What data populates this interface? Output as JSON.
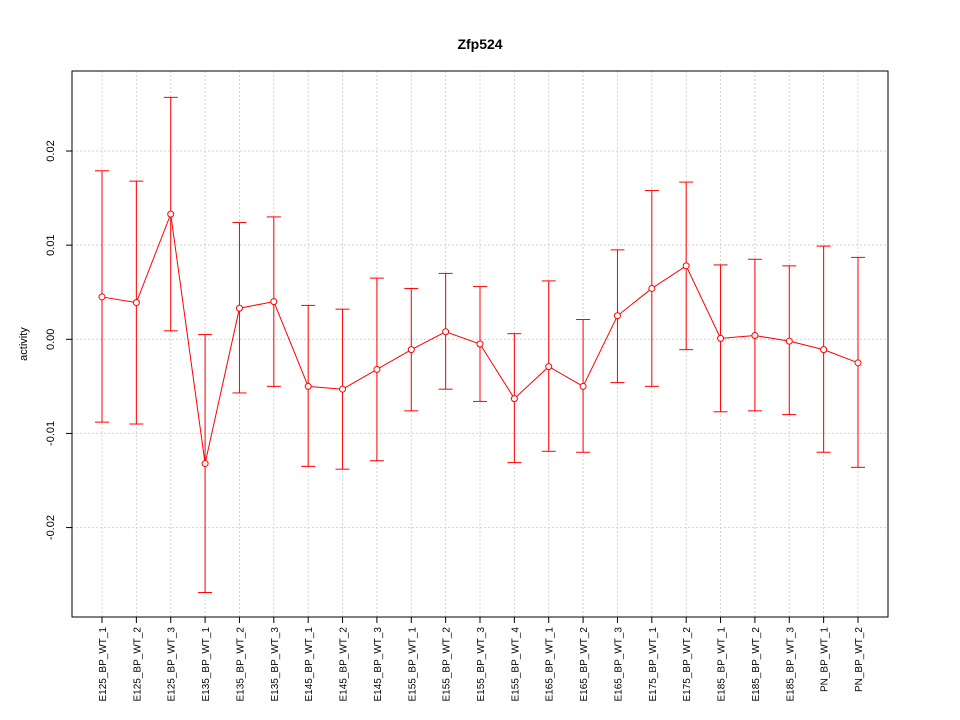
{
  "chart_data": {
    "type": "line",
    "title": "Zfp524",
    "xlabel": "",
    "ylabel": "activity",
    "ylim": [
      -0.0295,
      0.0285
    ],
    "yticks": [
      -0.02,
      -0.01,
      0.0,
      0.01,
      0.02
    ],
    "ytick_labels": [
      "-0.02",
      "-0.01",
      "0.00",
      "0.01",
      "0.02"
    ],
    "grid": true,
    "color": "#ff0000",
    "categories": [
      "E125_BP_WT_1",
      "E125_BP_WT_2",
      "E125_BP_WT_3",
      "E135_BP_WT_1",
      "E135_BP_WT_2",
      "E135_BP_WT_3",
      "E145_BP_WT_1",
      "E145_BP_WT_2",
      "E145_BP_WT_3",
      "E155_BP_WT_1",
      "E155_BP_WT_2",
      "E155_BP_WT_3",
      "E155_BP_WT_4",
      "E165_BP_WT_1",
      "E165_BP_WT_2",
      "E165_BP_WT_3",
      "E175_BP_WT_1",
      "E175_BP_WT_2",
      "E185_BP_WT_1",
      "E185_BP_WT_2",
      "E185_BP_WT_3",
      "PN_BP_WT_1",
      "PN_BP_WT_2"
    ],
    "series": [
      {
        "values": [
          0.0045,
          0.0039,
          0.0133,
          -0.0132,
          0.0033,
          0.004,
          -0.005,
          -0.0053,
          -0.0032,
          -0.0011,
          0.0008,
          -0.0005,
          -0.0063,
          -0.0029,
          -0.005,
          0.0025,
          0.0054,
          0.0078,
          0.0001,
          0.0004,
          -0.0002,
          -0.0011,
          -0.0025
        ],
        "upper": [
          0.0179,
          0.0168,
          0.0257,
          0.0005,
          0.0124,
          0.013,
          0.0036,
          0.0032,
          0.0065,
          0.0054,
          0.007,
          0.0056,
          0.0006,
          0.0062,
          0.0021,
          0.0095,
          0.0158,
          0.0167,
          0.0079,
          0.0085,
          0.0078,
          0.0099,
          0.0087
        ],
        "lower": [
          -0.0088,
          -0.009,
          0.0009,
          -0.0269,
          -0.0057,
          -0.005,
          -0.0135,
          -0.0138,
          -0.0129,
          -0.0076,
          -0.0053,
          -0.0066,
          -0.0131,
          -0.0119,
          -0.012,
          -0.0046,
          -0.005,
          -0.0011,
          -0.0077,
          -0.0076,
          -0.008,
          -0.012,
          -0.0136
        ]
      }
    ]
  }
}
